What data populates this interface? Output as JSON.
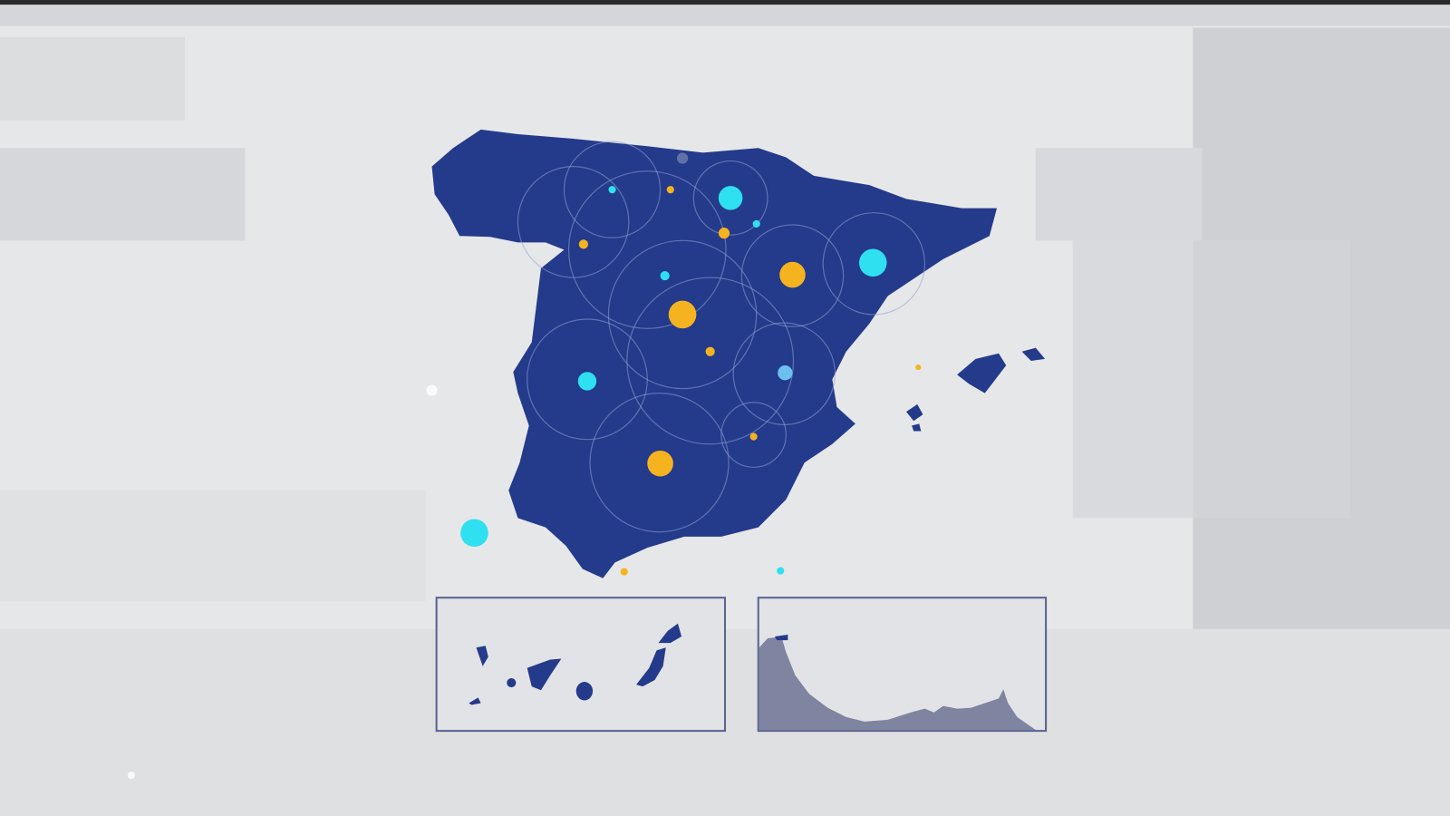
{
  "graphic": {
    "type": "broadcast map of Spain",
    "colors": {
      "background": "#e4e5e7",
      "land": "#243a8a",
      "accent_yellow": "#f5b320",
      "accent_cyan": "#2fe0f0",
      "accent_lightblue": "#6cc0f0",
      "inset_border": "#5a6290",
      "coast_fill": "#7f84a0"
    },
    "insets": [
      "canary-islands",
      "coastline-detail"
    ]
  }
}
